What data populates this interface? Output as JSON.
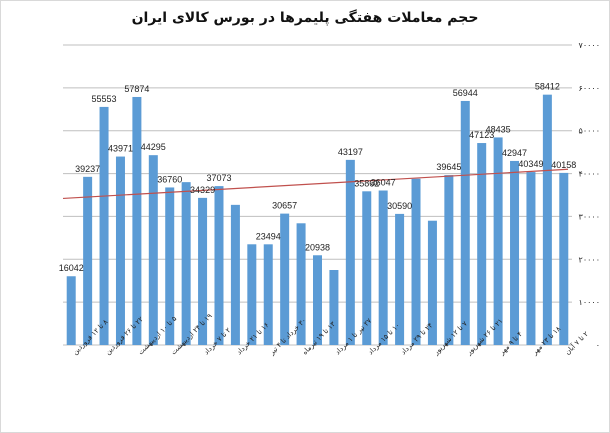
{
  "chart_data": {
    "type": "bar",
    "title": "حجم معاملات هفتگی پلیمرها در بورس کالای ایران",
    "xlabel": "",
    "ylabel": "",
    "ylim": [
      0,
      70000
    ],
    "yticks": [
      "0",
      "10000",
      "20000",
      "30000",
      "40000",
      "50000",
      "60000",
      "70000"
    ],
    "ytick_labels": [
      "٠",
      "١٠٠٠٠",
      "٢٠٠٠٠",
      "٣٠٠٠٠",
      "۴٠٠٠٠",
      "۵٠٠٠٠",
      "۶٠٠٠٠",
      "٧٠٠٠٠"
    ],
    "grid": true,
    "legend": null,
    "trendline": {
      "type": "linear",
      "color": "#c0504d",
      "start": 34200,
      "end": 41000
    },
    "bar_color": "#5b9bd5",
    "categories": [
      "۸ تا ۱۲ فروردین",
      "",
      "۲۲ تا ۲۶ فروردین",
      "",
      "۵ تا ۱۰ اردیبهشت",
      "",
      "۱۹ تا ۲۴ اردیبهشت",
      "",
      "۲ تا ۷ خرداد",
      "",
      "۱۶ تا ۲۱ خرداد",
      "",
      "۳۰ خرداد تا ۴ تیر",
      "",
      "۱۳ تا ۱۹ تیرماه",
      "",
      "۲۷ تیر تا ۱ مرداد",
      "",
      "۱۰ تا ۱۵ مرداد",
      "",
      "۲۴ تا ۲۹ مرداد",
      "",
      "۷ تا ۱۲ شهریور",
      "",
      "۲۱ تا ۲۶ شهریور",
      "",
      "۴ تا ۹ مهر",
      "",
      "۱۸ تا ۲۳ مهر",
      "",
      "۲ تا ۷ آبان"
    ],
    "values": [
      16042,
      39237,
      55553,
      43971,
      57874,
      44295,
      36760,
      38000,
      34329,
      37073,
      32700,
      23500,
      23494,
      30657,
      28400,
      20938,
      17500,
      43197,
      35862,
      36047,
      30590,
      38800,
      29000,
      39645,
      56944,
      47123,
      48435,
      42947,
      40349,
      58412,
      40158
    ],
    "labels": [
      "16042",
      "39237",
      "55553",
      "43971",
      "57874",
      "44295",
      "36760",
      "",
      "34329",
      "37073",
      "",
      "",
      "23494",
      "30657",
      "",
      "20938",
      "",
      "43197",
      "35862",
      "36047",
      "30590",
      "",
      "",
      "39645",
      "56944",
      "47123",
      "48435",
      "42947",
      "40349",
      "58412",
      "40158"
    ]
  }
}
